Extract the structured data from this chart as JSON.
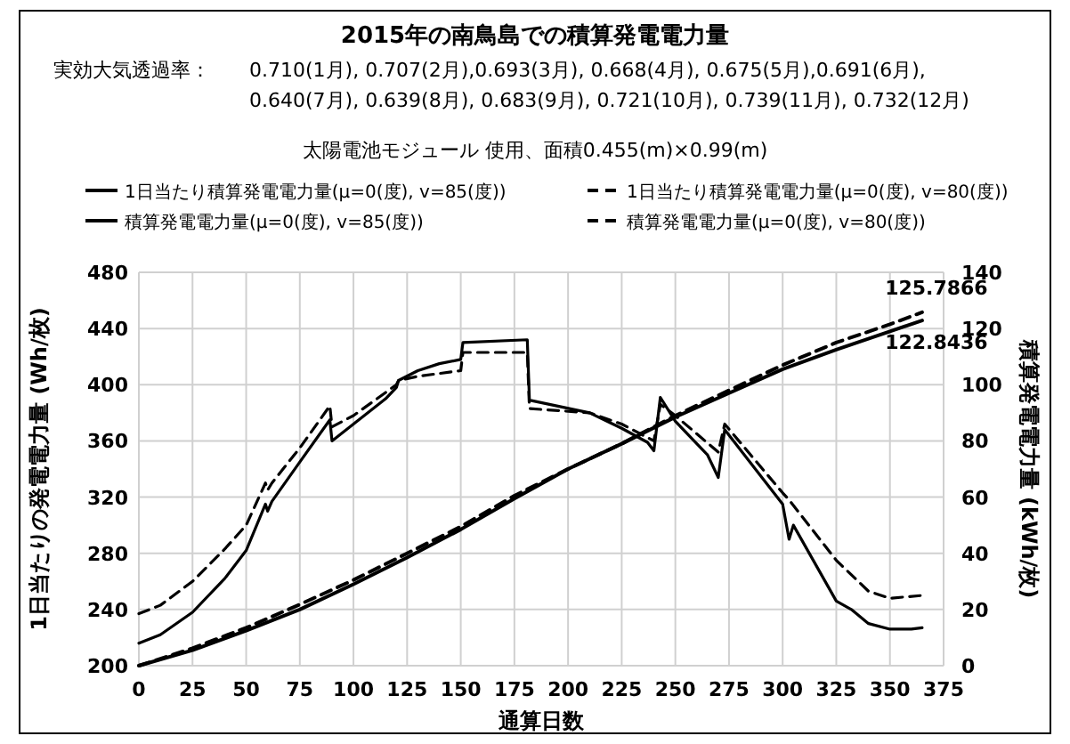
{
  "chart_data": {
    "type": "line",
    "title": "2015年の南鳥島での積算発電電力量",
    "annotations": [
      "実効大気透過率：",
      "0.710(1月), 0.707(2月),0.693(3月), 0.668(4月), 0.675(5月),0.691(6月),",
      "0.640(7月), 0.639(8月), 0.683(9月), 0.721(10月), 0.739(11月), 0.732(12月)",
      "太陽電池モジュール 使用、面積0.455(m)×0.99(m)"
    ],
    "xlabel": "通算日数",
    "ylabel": "1日当たりの発電電力量 (Wh/枚)",
    "y2label": "積算発電電力量 (kWh/枚)",
    "xlim": [
      0,
      375
    ],
    "xticks": [
      0,
      25,
      50,
      75,
      100,
      125,
      150,
      175,
      200,
      225,
      250,
      275,
      300,
      325,
      350,
      375
    ],
    "ylim": [
      200,
      480
    ],
    "yticks": [
      200,
      240,
      280,
      320,
      360,
      400,
      440,
      480
    ],
    "y2lim": [
      0,
      140
    ],
    "y2ticks": [
      0,
      20,
      40,
      60,
      80,
      100,
      120,
      140
    ],
    "grid": true,
    "legend": "top",
    "series": [
      {
        "name": "1日当たり積算発電電力量(μ=0(度), v=85(度))",
        "color": "#000000",
        "line_style": "solid",
        "x": [
          0,
          10,
          25,
          40,
          50,
          59,
          60,
          62,
          75,
          89,
          90,
          100,
          115,
          120,
          121,
          130,
          140,
          150,
          151,
          181,
          182,
          210,
          225,
          237,
          240,
          243,
          250,
          265,
          270,
          273,
          300,
          303,
          305,
          325,
          332,
          340,
          350,
          360,
          365
        ],
        "values": [
          216,
          222,
          238,
          262,
          282,
          315,
          310,
          317,
          345,
          375,
          360,
          372,
          390,
          398,
          403,
          410,
          415,
          418,
          430,
          432,
          389,
          380,
          369,
          359,
          353,
          391,
          374,
          350,
          334,
          368,
          315,
          290,
          300,
          246,
          240,
          230,
          226,
          226,
          227
        ]
      },
      {
        "name": "1日当たり積算発電電力量(μ=0(度), v=80(度))",
        "color": "#000000",
        "line_style": "dashed",
        "x": [
          0,
          10,
          25,
          40,
          50,
          59,
          60,
          62,
          75,
          89,
          90,
          100,
          120,
          121,
          130,
          150,
          151,
          181,
          182,
          210,
          225,
          240,
          243,
          250,
          270,
          273,
          300,
          303,
          325,
          340,
          350,
          365
        ],
        "values": [
          237,
          243,
          260,
          283,
          300,
          330,
          325,
          330,
          355,
          385,
          370,
          378,
          400,
          403,
          406,
          410,
          423,
          423,
          383,
          380,
          372,
          360,
          386,
          378,
          352,
          372,
          323,
          318,
          275,
          253,
          248,
          250
        ]
      },
      {
        "name": "積算発電電力量(μ=0(度), v=85(度))",
        "color": "#000000",
        "line_style": "solid",
        "axis": "y2",
        "x": [
          0,
          25,
          50,
          75,
          100,
          125,
          150,
          175,
          200,
          225,
          250,
          275,
          300,
          325,
          350,
          365
        ],
        "values": [
          0,
          5.5,
          12.5,
          20,
          29,
          38.5,
          48.5,
          59.5,
          70,
          79,
          88.5,
          97,
          105.5,
          112.5,
          119,
          122.8436
        ],
        "value_labels": [
          null,
          null,
          null,
          null,
          null,
          null,
          null,
          null,
          null,
          null,
          null,
          null,
          null,
          null,
          null,
          "122.8436"
        ]
      },
      {
        "name": "積算発電電力量(μ=0(度), v=80(度))",
        "color": "#000000",
        "line_style": "dashed",
        "axis": "y2",
        "x": [
          0,
          25,
          50,
          75,
          100,
          125,
          150,
          175,
          200,
          225,
          250,
          275,
          300,
          325,
          350,
          365
        ],
        "values": [
          0,
          6.2,
          13.5,
          21.8,
          30.5,
          40,
          49.5,
          60.5,
          70,
          79,
          89,
          98,
          107,
          115,
          121.5,
          125.7866
        ],
        "value_labels": [
          null,
          null,
          null,
          null,
          null,
          null,
          null,
          null,
          null,
          null,
          null,
          null,
          null,
          null,
          null,
          "125.7866"
        ]
      }
    ]
  }
}
